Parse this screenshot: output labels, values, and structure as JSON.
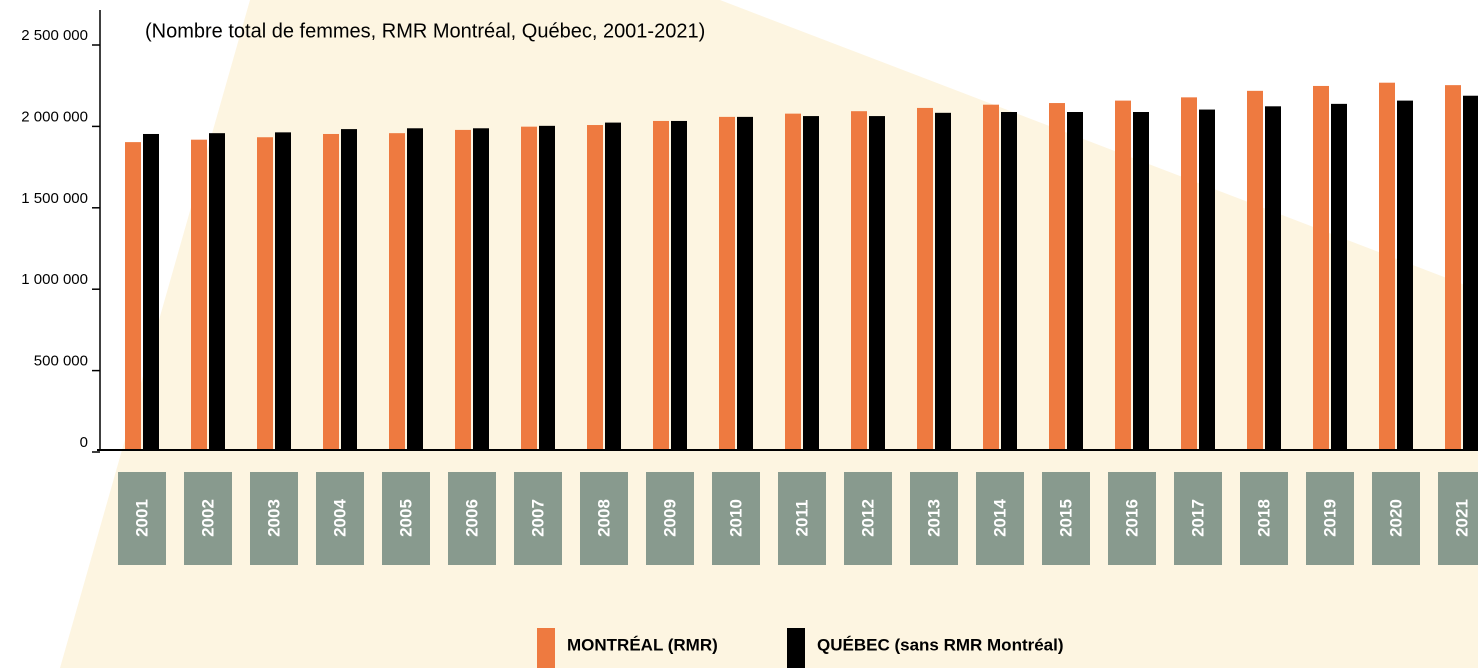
{
  "chart_data": {
    "type": "bar",
    "title": "(Nombre total de femmes, RMR Montréal, Québec, 2001-2021)",
    "categories": [
      "2001",
      "2002",
      "2003",
      "2004",
      "2005",
      "2006",
      "2007",
      "2008",
      "2009",
      "2010",
      "2011",
      "2012",
      "2013",
      "2014",
      "2015",
      "2016",
      "2017",
      "2018",
      "2019",
      "2020",
      "2021"
    ],
    "series": [
      {
        "name": "MONTRÉAL (RMR)",
        "color": "#ee7a40",
        "values": [
          1885000,
          1900000,
          1915000,
          1935000,
          1940000,
          1960000,
          1980000,
          1990000,
          2015000,
          2040000,
          2060000,
          2075000,
          2095000,
          2115000,
          2125000,
          2140000,
          2160000,
          2200000,
          2230000,
          2250000,
          2235000
        ]
      },
      {
        "name": "QUÉBEC (sans RMR Montréal)",
        "color": "#000000",
        "values": [
          1935000,
          1940000,
          1945000,
          1965000,
          1970000,
          1970000,
          1985000,
          2005000,
          2015000,
          2040000,
          2045000,
          2045000,
          2065000,
          2070000,
          2070000,
          2070000,
          2085000,
          2105000,
          2120000,
          2140000,
          2170000
        ]
      }
    ],
    "ylim": [
      0,
      2500000
    ],
    "yticks": [
      0,
      {
        "value": 500000,
        "label": "500 000"
      },
      {
        "value": 1000000,
        "label": "1 000 000"
      },
      {
        "value": 1500000,
        "label": "1 500 000"
      },
      {
        "value": 2000000,
        "label": "2 000 000"
      },
      {
        "value": 2500000,
        "label": "2 500 000"
      }
    ]
  }
}
